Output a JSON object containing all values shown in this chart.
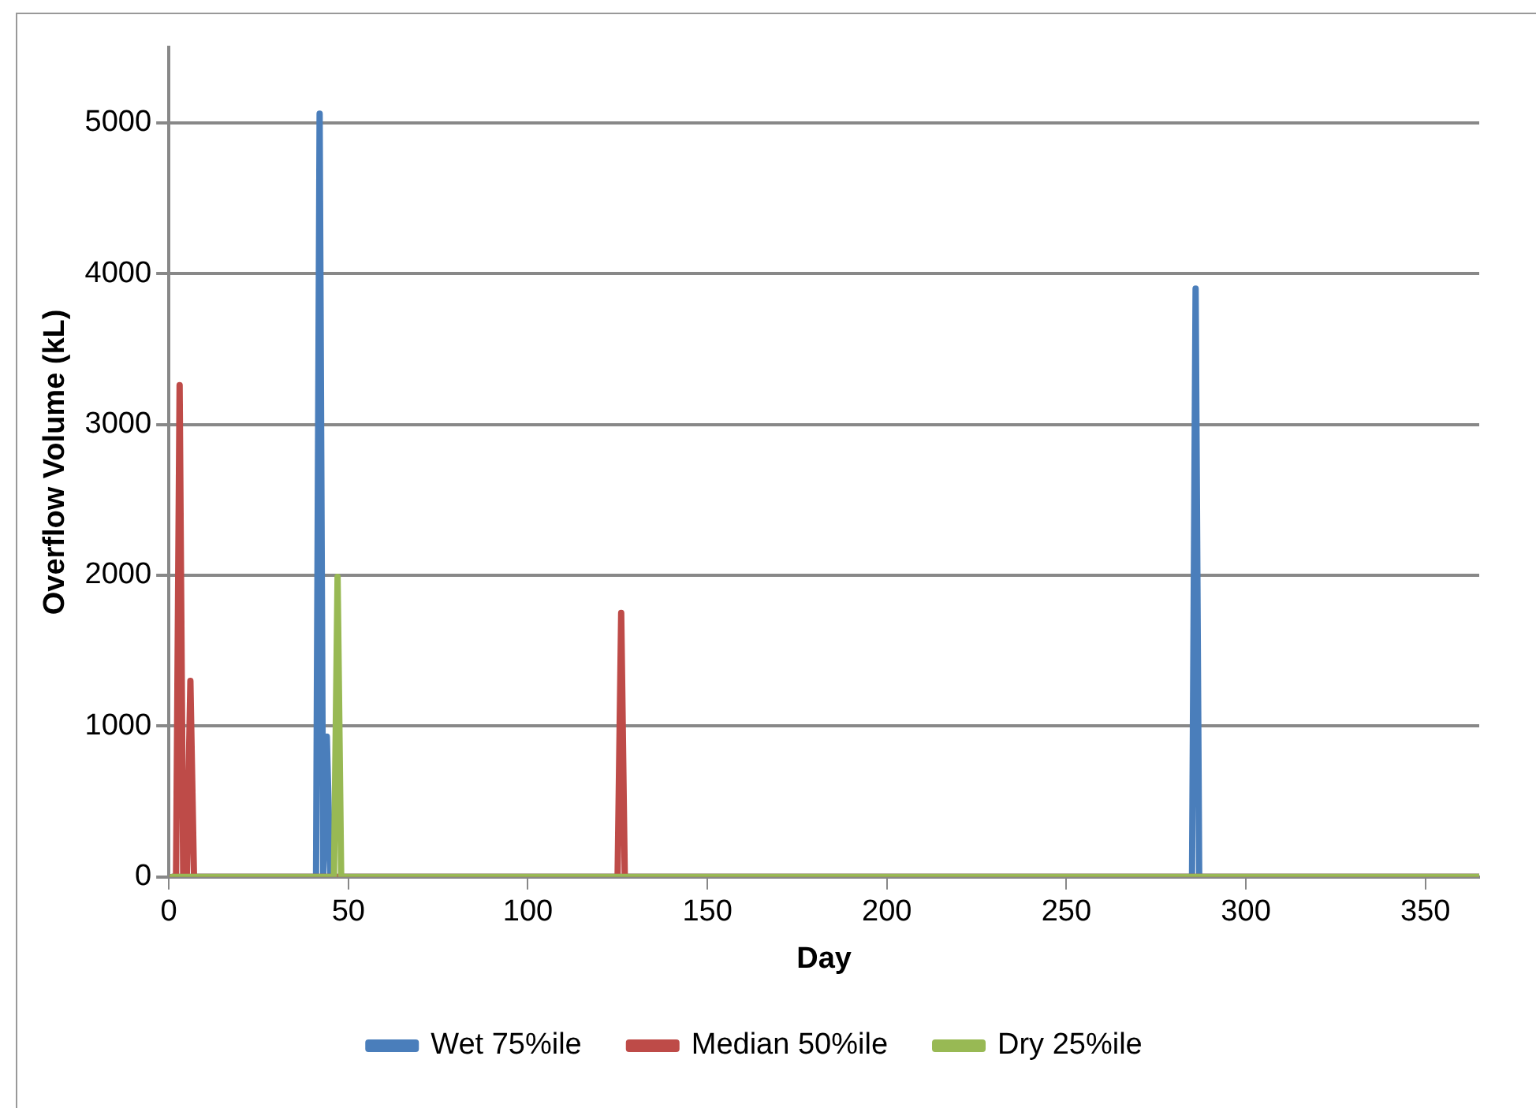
{
  "chart_data": {
    "type": "line",
    "xlabel": "Day",
    "ylabel": "Overflow Volume (kL)",
    "xlim": [
      0,
      365
    ],
    "xticks": [
      0,
      50,
      100,
      150,
      200,
      250,
      300,
      350
    ],
    "ylim": [
      0,
      5500
    ],
    "yticks": [
      0,
      1000,
      2000,
      3000,
      4000,
      5000
    ],
    "grid": "y",
    "legend": "bottom",
    "marker": "none",
    "line_style": "solid",
    "series": [
      {
        "name": "Wet 75%ile",
        "color": "#4a7ebb",
        "x": [
          1,
          41,
          42,
          43,
          44,
          45,
          285,
          286,
          287,
          365
        ],
        "values": [
          0,
          0,
          5060,
          0,
          930,
          0,
          0,
          3900,
          0,
          0
        ]
      },
      {
        "name": "Median 50%ile",
        "color": "#be4b48",
        "x": [
          1,
          2,
          3,
          4,
          5,
          6,
          7,
          125,
          126,
          127,
          365
        ],
        "values": [
          0,
          0,
          3260,
          0,
          0,
          1300,
          0,
          0,
          1750,
          0,
          0
        ]
      },
      {
        "name": "Dry 25%ile",
        "color": "#98b954",
        "x": [
          1,
          46,
          47,
          48,
          365
        ],
        "values": [
          0,
          0,
          1990,
          0,
          0
        ]
      }
    ]
  }
}
